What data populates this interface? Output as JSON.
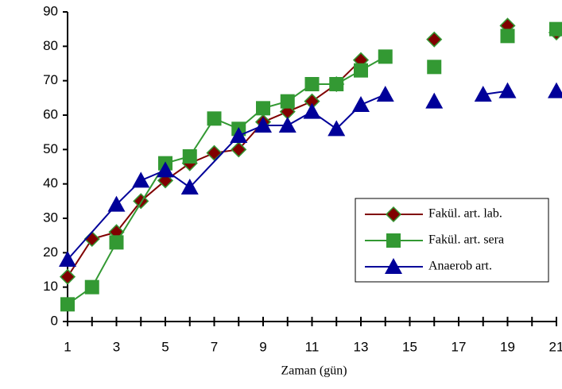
{
  "chart_data": {
    "type": "line",
    "x_label": "Zaman (gün)",
    "xlim": [
      1,
      21
    ],
    "xticks": [
      1,
      3,
      5,
      7,
      9,
      11,
      13,
      15,
      17,
      19,
      21
    ],
    "ylim": [
      0,
      90
    ],
    "yticks": [
      0,
      10,
      20,
      30,
      40,
      50,
      60,
      70,
      80,
      90
    ],
    "grid": false,
    "legend": "lower right",
    "series": [
      {
        "name": "Fakül. art. lab.",
        "color": "#800000",
        "marker": "diamond",
        "x": [
          1,
          2,
          3,
          4,
          5,
          6,
          7,
          8,
          9,
          10,
          11,
          12,
          13,
          14,
          16,
          17,
          19,
          20,
          21
        ],
        "values": [
          13,
          24,
          26,
          35,
          41,
          46,
          49,
          50,
          58,
          61,
          64,
          69,
          76,
          null,
          82,
          null,
          86,
          null,
          84
        ]
      },
      {
        "name": "Fakül. art. sera",
        "color": "#339933",
        "marker": "square",
        "x": [
          1,
          2,
          3,
          5,
          6,
          7,
          8,
          9,
          10,
          11,
          12,
          13,
          14,
          15,
          16,
          18,
          19,
          20,
          21
        ],
        "values": [
          5,
          10,
          23,
          46,
          48,
          59,
          56,
          62,
          64,
          69,
          69,
          73,
          77,
          null,
          74,
          null,
          83,
          null,
          85
        ]
      },
      {
        "name": "Anaerob art.",
        "color": "#000099",
        "marker": "triangle",
        "x": [
          1,
          3,
          4,
          5,
          6,
          8,
          9,
          10,
          11,
          12,
          13,
          14,
          15,
          16,
          17,
          18,
          19,
          20,
          21
        ],
        "values": [
          18,
          34,
          41,
          44,
          39,
          54,
          57,
          57,
          61,
          56,
          63,
          66,
          null,
          64,
          null,
          66,
          67,
          null,
          67
        ]
      }
    ]
  }
}
